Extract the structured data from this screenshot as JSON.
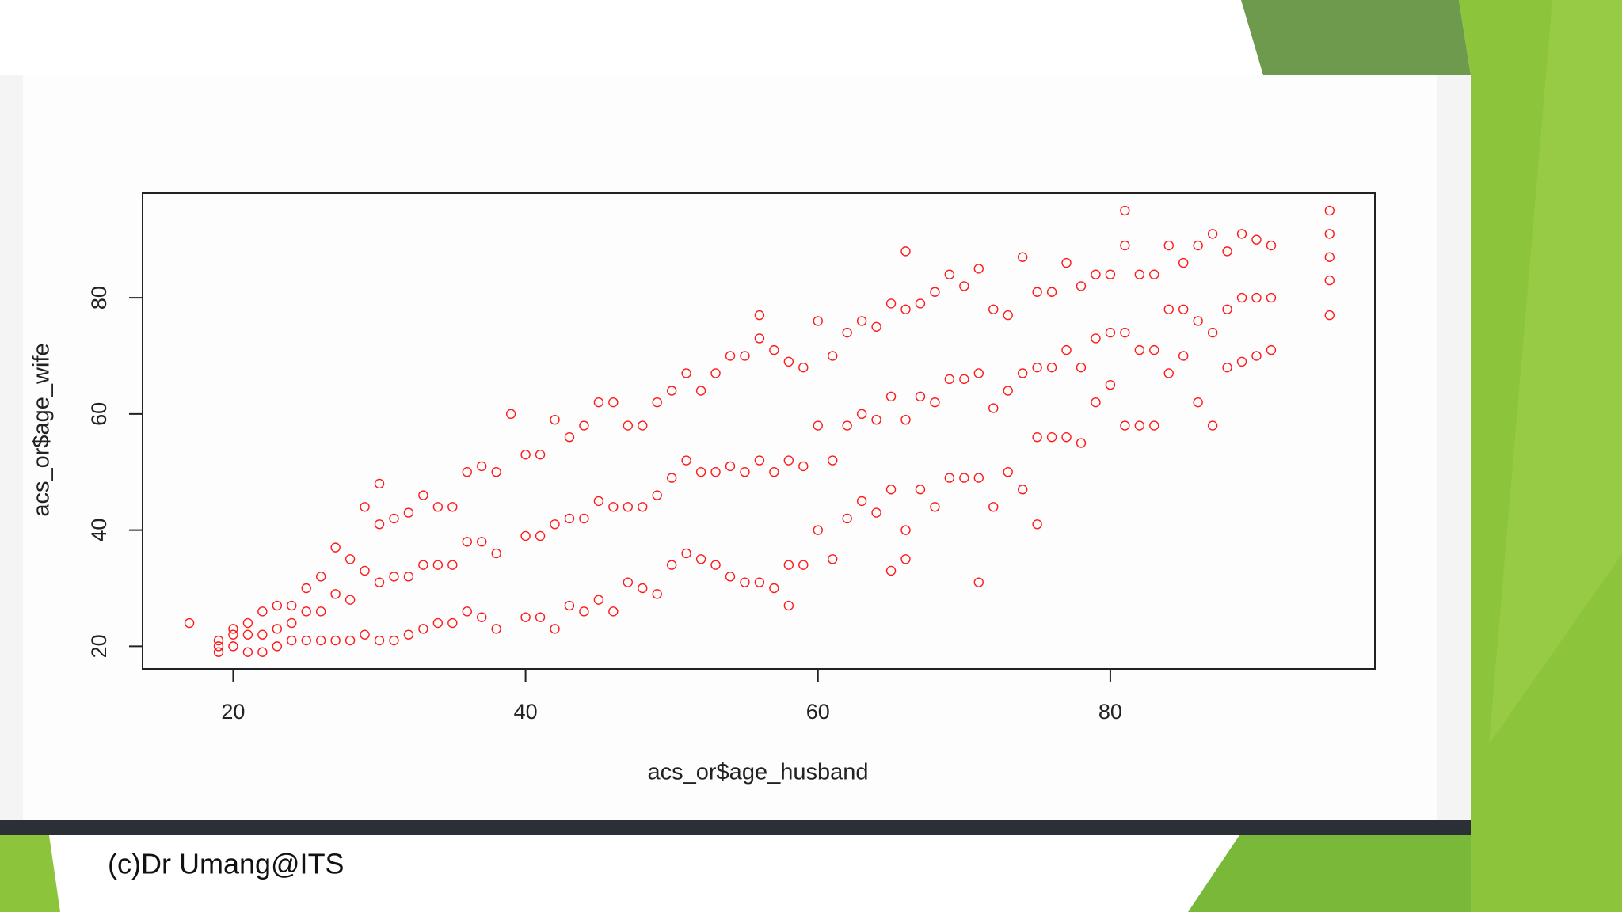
{
  "footer": "(c)Dr Umang@ITS",
  "chart_data": {
    "type": "scatter",
    "xlabel": "acs_or$age_husband",
    "ylabel": "acs_or$age_wife",
    "color": "#ff1a1a",
    "xlim": [
      13.8,
      98.1
    ],
    "ylim": [
      16.1,
      98.0
    ],
    "xticks": [
      20,
      40,
      60,
      80
    ],
    "yticks": [
      20,
      40,
      60,
      80
    ],
    "x": [
      19,
      20,
      21,
      22,
      23,
      24,
      25,
      26,
      27,
      28,
      29,
      30,
      31,
      32,
      33,
      34,
      35,
      36,
      37,
      38,
      40,
      41,
      42,
      43,
      44,
      45,
      46,
      47,
      48,
      49,
      50,
      51,
      52,
      53,
      54,
      55,
      56,
      57,
      58,
      59,
      60,
      61,
      62,
      63,
      64,
      65,
      66,
      67,
      68,
      69,
      70,
      71,
      72,
      73,
      74,
      75,
      76,
      77,
      78,
      79,
      80,
      81,
      82,
      83,
      84,
      85,
      86,
      87,
      88,
      89,
      90,
      91,
      95,
      19,
      20,
      21,
      22,
      23,
      24,
      25,
      26,
      27,
      28,
      29,
      30,
      31,
      32,
      33,
      34,
      35,
      36,
      37,
      38,
      40,
      41,
      42,
      43,
      44,
      45,
      46,
      47,
      48,
      49,
      50,
      51,
      52,
      53,
      54,
      55,
      56,
      57,
      58,
      59,
      60,
      61,
      62,
      63,
      64,
      65,
      66,
      67,
      68,
      69,
      70,
      71,
      72,
      73,
      74,
      75,
      76,
      77,
      78,
      79,
      80,
      81,
      82,
      83,
      84,
      85,
      86,
      87,
      88,
      89,
      90,
      91,
      95,
      19,
      20,
      21,
      22,
      23,
      24,
      25,
      26,
      27,
      28,
      29,
      30,
      31,
      32,
      33,
      34,
      35,
      36,
      37,
      38,
      40,
      41,
      42,
      43,
      44,
      45,
      46,
      47,
      48,
      49,
      50,
      51,
      52,
      53,
      54,
      55,
      56,
      57,
      58,
      59,
      60,
      61,
      62,
      63,
      64,
      65,
      66,
      67,
      68,
      69,
      70,
      71,
      72,
      73,
      74,
      75,
      76,
      77,
      78,
      79,
      80,
      81,
      82,
      83,
      84,
      85,
      86,
      87,
      88,
      89,
      90,
      91,
      95,
      17,
      30,
      39,
      81,
      95,
      95,
      66,
      56,
      71,
      75,
      58,
      65,
      66
    ],
    "values": [
      19,
      20,
      19,
      19,
      20,
      21,
      21,
      21,
      21,
      21,
      22,
      21,
      21,
      22,
      23,
      24,
      24,
      26,
      25,
      23,
      25,
      25,
      23,
      27,
      26,
      28,
      26,
      31,
      30,
      29,
      34,
      36,
      35,
      34,
      32,
      31,
      31,
      30,
      34,
      34,
      40,
      35,
      42,
      45,
      43,
      47,
      40,
      47,
      44,
      49,
      49,
      49,
      44,
      50,
      47,
      56,
      56,
      56,
      55,
      62,
      65,
      58,
      58,
      58,
      67,
      70,
      62,
      58,
      68,
      69,
      70,
      71,
      83,
      20,
      22,
      22,
      22,
      23,
      24,
      26,
      26,
      29,
      28,
      33,
      31,
      32,
      32,
      34,
      34,
      34,
      38,
      38,
      36,
      39,
      39,
      41,
      42,
      42,
      45,
      44,
      44,
      44,
      46,
      49,
      52,
      50,
      50,
      51,
      50,
      52,
      50,
      52,
      51,
      58,
      52,
      58,
      60,
      59,
      63,
      59,
      63,
      62,
      66,
      66,
      67,
      61,
      64,
      67,
      68,
      68,
      71,
      68,
      73,
      74,
      74,
      71,
      71,
      78,
      78,
      76,
      74,
      78,
      80,
      80,
      80,
      87,
      21,
      23,
      24,
      26,
      27,
      27,
      30,
      32,
      37,
      35,
      44,
      41,
      42,
      43,
      46,
      44,
      44,
      50,
      51,
      50,
      53,
      53,
      59,
      56,
      58,
      62,
      62,
      58,
      58,
      62,
      64,
      67,
      64,
      67,
      70,
      70,
      73,
      71,
      69,
      68,
      76,
      70,
      74,
      76,
      75,
      79,
      78,
      79,
      81,
      84,
      82,
      85,
      78,
      77,
      87,
      81,
      81,
      86,
      82,
      84,
      84,
      89,
      84,
      84,
      89,
      86,
      89,
      91,
      88,
      91,
      90,
      89,
      91,
      24,
      48,
      60,
      95,
      95,
      77,
      88,
      77,
      31,
      41,
      27,
      33,
      35
    ]
  }
}
